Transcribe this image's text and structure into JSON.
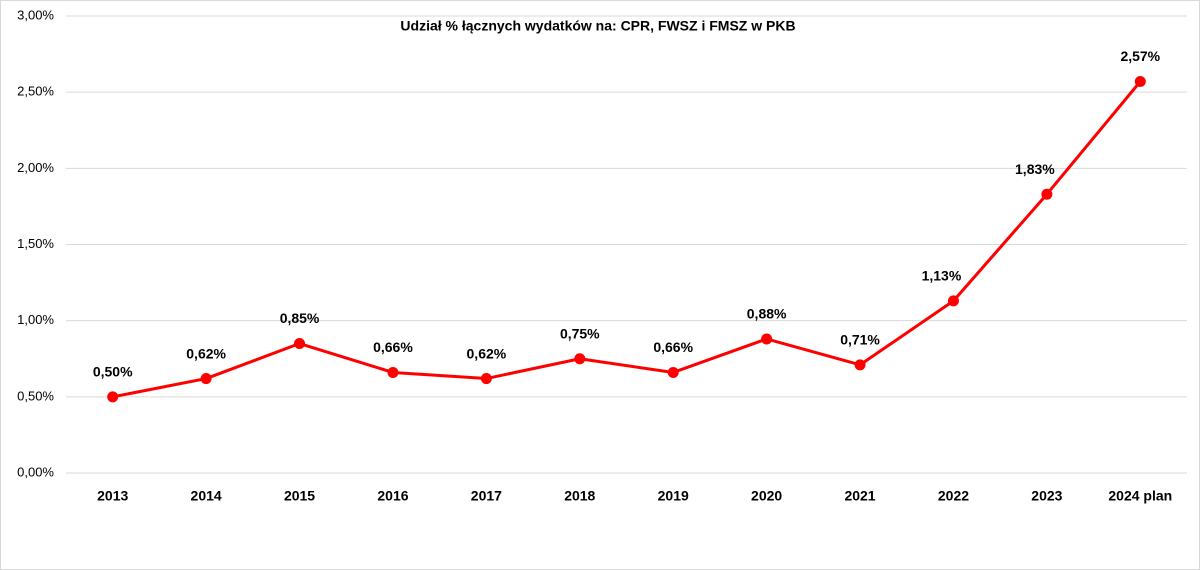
{
  "chart_data": {
    "type": "line",
    "title": "Udział % łącznych wydatków na: CPR, FWSZ i FMSZ w PKB",
    "categories": [
      "2013",
      "2014",
      "2015",
      "2016",
      "2017",
      "2018",
      "2019",
      "2020",
      "2021",
      "2022",
      "2023",
      "2024 plan"
    ],
    "series": [
      {
        "color": "#ff0000",
        "values": [
          0.5,
          0.62,
          0.85,
          0.66,
          0.62,
          0.75,
          0.66,
          0.88,
          0.71,
          1.13,
          1.83,
          2.57
        ],
        "value_labels": [
          "0,50%",
          "0,62%",
          "0,85%",
          "0,66%",
          "0,62%",
          "0,75%",
          "0,66%",
          "0,88%",
          "0,71%",
          "1,13%",
          "1,83%",
          "2,57%"
        ]
      }
    ],
    "ylim": [
      0,
      3
    ],
    "yticks": [
      {
        "value": 0,
        "label": "0,00%"
      },
      {
        "value": 0.5,
        "label": "0,50%"
      },
      {
        "value": 1,
        "label": "1,00%"
      },
      {
        "value": 1.5,
        "label": "1,50%"
      },
      {
        "value": 2,
        "label": "2,00%"
      },
      {
        "value": 2.5,
        "label": "2,50%"
      },
      {
        "value": 3,
        "label": "3,00%"
      }
    ],
    "grid": true
  }
}
